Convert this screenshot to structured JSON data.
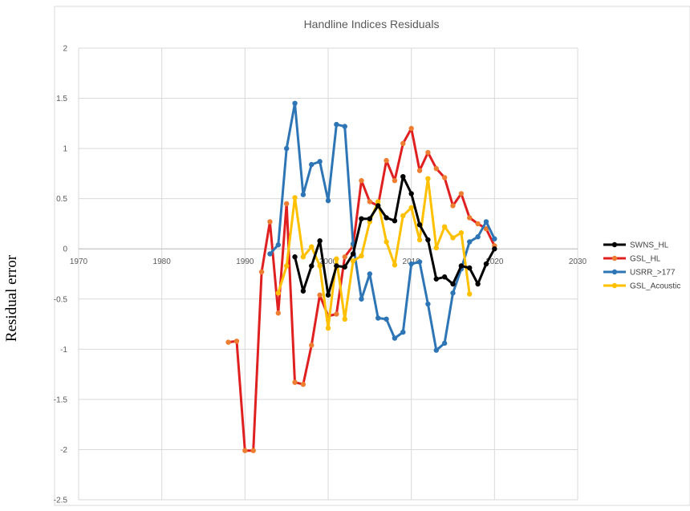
{
  "chart_data": {
    "type": "line",
    "title": "Handline Indices Residuals",
    "xlabel": "",
    "ylabel": "Residual error",
    "xlim": [
      1970,
      2030
    ],
    "ylim": [
      -2.5,
      2
    ],
    "x_ticks": [
      1970,
      1980,
      1990,
      2000,
      2010,
      2020,
      2030
    ],
    "y_ticks": [
      2,
      1.5,
      1,
      0.5,
      0,
      -0.5,
      -1,
      -1.5,
      -2,
      -2.5
    ],
    "grid": true,
    "legend_position": "right",
    "series": [
      {
        "name": "GSL_HL",
        "color": "#e02020",
        "marker_color": "#ed7d31",
        "x": [
          1988,
          1989,
          1990,
          1991,
          1992,
          1993,
          1994,
          1995,
          1996,
          1997,
          1998,
          1999,
          2000,
          2001,
          2002,
          2003,
          2004,
          2005,
          2006,
          2007,
          2008,
          2009,
          2010,
          2011,
          2012,
          2013,
          2014,
          2015,
          2016,
          2017,
          2018,
          2019,
          2020
        ],
        "y": [
          -0.93,
          -0.92,
          -2.01,
          -2.01,
          -0.23,
          0.27,
          -0.64,
          0.45,
          -1.33,
          -1.35,
          -0.96,
          -0.46,
          -0.67,
          -0.65,
          -0.08,
          0.03,
          0.68,
          0.47,
          0.43,
          0.88,
          0.68,
          1.05,
          1.2,
          0.78,
          0.96,
          0.8,
          0.71,
          0.43,
          0.55,
          0.31,
          0.25,
          0.2,
          0.03
        ]
      },
      {
        "name": "USRR_>177",
        "color": "#2e75b6",
        "marker_color": "#2e75b6",
        "x": [
          1993,
          1994,
          1995,
          1996,
          1997,
          1998,
          1999,
          2000,
          2001,
          2002,
          2003,
          2004,
          2005,
          2006,
          2007,
          2008,
          2009,
          2010,
          2011,
          2012,
          2013,
          2014,
          2015,
          2016,
          2017,
          2018,
          2019,
          2020
        ],
        "y": [
          -0.05,
          0.04,
          1.0,
          1.45,
          0.54,
          0.84,
          0.87,
          0.48,
          1.24,
          1.22,
          0.05,
          -0.5,
          -0.25,
          -0.69,
          -0.7,
          -0.89,
          -0.83,
          -0.15,
          -0.13,
          -0.55,
          -1.01,
          -0.94,
          -0.44,
          -0.2,
          0.07,
          0.12,
          0.27,
          0.1
        ]
      },
      {
        "name": "GSL_Acoustic",
        "color": "#ffc000",
        "marker_color": "#ffc000",
        "x": [
          1994,
          1995,
          1996,
          1997,
          1998,
          1999,
          2000,
          2001,
          2002,
          2003,
          2004,
          2005,
          2006,
          2007,
          2008,
          2009,
          2010,
          2011,
          2012,
          2013,
          2014,
          2015,
          2016,
          2017
        ],
        "y": [
          -0.44,
          -0.17,
          0.51,
          -0.08,
          0.02,
          -0.17,
          -0.79,
          -0.1,
          -0.7,
          -0.12,
          -0.07,
          0.27,
          0.47,
          0.07,
          -0.16,
          0.33,
          0.41,
          0.09,
          0.7,
          0.01,
          0.22,
          0.11,
          0.16,
          -0.45
        ]
      },
      {
        "name": "SWNS_HL",
        "color": "#000000",
        "marker_color": "#000000",
        "x": [
          1996,
          1997,
          1998,
          1999,
          2000,
          2001,
          2002,
          2003,
          2004,
          2005,
          2006,
          2007,
          2008,
          2009,
          2010,
          2011,
          2012,
          2013,
          2014,
          2015,
          2016,
          2017,
          2018,
          2019,
          2020
        ],
        "y": [
          -0.08,
          -0.42,
          -0.17,
          0.08,
          -0.46,
          -0.17,
          -0.18,
          -0.05,
          0.3,
          0.3,
          0.43,
          0.31,
          0.28,
          0.72,
          0.55,
          0.24,
          0.09,
          -0.3,
          -0.28,
          -0.35,
          -0.17,
          -0.19,
          -0.35,
          -0.15,
          0.0
        ]
      }
    ],
    "legend": [
      "SWNS_HL",
      "GSL_HL",
      "USRR_>177",
      "GSL_Acoustic"
    ]
  }
}
